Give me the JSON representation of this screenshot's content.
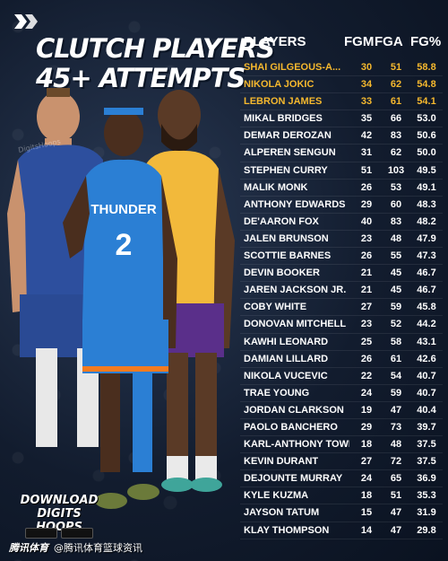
{
  "header": {
    "title_line1": "CLUTCH PLAYERS",
    "title_line2": "45+ ATTEMPTS"
  },
  "columns": {
    "player": "PLAYERS",
    "fgm": "FGM",
    "fga": "FGA",
    "fgp": "FG%"
  },
  "highlight_color": "#f5b82e",
  "rows": [
    {
      "name": "SHAI GILGEOUS-A...",
      "fgm": "30",
      "fga": "51",
      "fgp": "58.8",
      "highlight": true
    },
    {
      "name": "NIKOLA JOKIC",
      "fgm": "34",
      "fga": "62",
      "fgp": "54.8",
      "highlight": true
    },
    {
      "name": "LEBRON JAMES",
      "fgm": "33",
      "fga": "61",
      "fgp": "54.1",
      "highlight": true
    },
    {
      "name": "MIKAL BRIDGES",
      "fgm": "35",
      "fga": "66",
      "fgp": "53.0",
      "highlight": false
    },
    {
      "name": "DEMAR DEROZAN",
      "fgm": "42",
      "fga": "83",
      "fgp": "50.6",
      "highlight": false
    },
    {
      "name": "ALPEREN SENGUN",
      "fgm": "31",
      "fga": "62",
      "fgp": "50.0",
      "highlight": false
    },
    {
      "name": "STEPHEN CURRY",
      "fgm": "51",
      "fga": "103",
      "fgp": "49.5",
      "highlight": false
    },
    {
      "name": "MALIK MONK",
      "fgm": "26",
      "fga": "53",
      "fgp": "49.1",
      "highlight": false
    },
    {
      "name": "ANTHONY EDWARDS",
      "fgm": "29",
      "fga": "60",
      "fgp": "48.3",
      "highlight": false
    },
    {
      "name": "DE'AARON FOX",
      "fgm": "40",
      "fga": "83",
      "fgp": "48.2",
      "highlight": false
    },
    {
      "name": "JALEN BRUNSON",
      "fgm": "23",
      "fga": "48",
      "fgp": "47.9",
      "highlight": false
    },
    {
      "name": "SCOTTIE BARNES",
      "fgm": "26",
      "fga": "55",
      "fgp": "47.3",
      "highlight": false
    },
    {
      "name": "DEVIN BOOKER",
      "fgm": "21",
      "fga": "45",
      "fgp": "46.7",
      "highlight": false
    },
    {
      "name": "JAREN JACKSON JR.",
      "fgm": "21",
      "fga": "45",
      "fgp": "46.7",
      "highlight": false
    },
    {
      "name": "COBY WHITE",
      "fgm": "27",
      "fga": "59",
      "fgp": "45.8",
      "highlight": false
    },
    {
      "name": "DONOVAN MITCHELL",
      "fgm": "23",
      "fga": "52",
      "fgp": "44.2",
      "highlight": false
    },
    {
      "name": "KAWHI LEONARD",
      "fgm": "25",
      "fga": "58",
      "fgp": "43.1",
      "highlight": false
    },
    {
      "name": "DAMIAN LILLARD",
      "fgm": "26",
      "fga": "61",
      "fgp": "42.6",
      "highlight": false
    },
    {
      "name": "NIKOLA VUCEVIC",
      "fgm": "22",
      "fga": "54",
      "fgp": "40.7",
      "highlight": false
    },
    {
      "name": "TRAE YOUNG",
      "fgm": "24",
      "fga": "59",
      "fgp": "40.7",
      "highlight": false
    },
    {
      "name": "JORDAN CLARKSON",
      "fgm": "19",
      "fga": "47",
      "fgp": "40.4",
      "highlight": false
    },
    {
      "name": "PAOLO BANCHERO",
      "fgm": "29",
      "fga": "73",
      "fgp": "39.7",
      "highlight": false
    },
    {
      "name": "KARL-ANTHONY TOWNS",
      "fgm": "18",
      "fga": "48",
      "fgp": "37.5",
      "highlight": false
    },
    {
      "name": "KEVIN DURANT",
      "fgm": "27",
      "fga": "72",
      "fgp": "37.5",
      "highlight": false
    },
    {
      "name": "DEJOUNTE MURRAY",
      "fgm": "24",
      "fga": "65",
      "fgp": "36.9",
      "highlight": false
    },
    {
      "name": "KYLE KUZMA",
      "fgm": "18",
      "fga": "51",
      "fgp": "35.3",
      "highlight": false
    },
    {
      "name": "JAYSON TATUM",
      "fgm": "15",
      "fga": "47",
      "fgp": "31.9",
      "highlight": false
    },
    {
      "name": "KLAY THOMPSON",
      "fgm": "14",
      "fga": "47",
      "fgp": "29.8",
      "highlight": false
    }
  ],
  "jersey": {
    "team_text": "THUNDER",
    "number": "2"
  },
  "image_watermark": "DigitsHoops",
  "promo": {
    "line1": "DOWNLOAD",
    "line2": "DIGITS HOOPS"
  },
  "footer": {
    "brand": "腾讯体育",
    "handle": "@腾讯体育篮球资讯"
  },
  "icons": [
    "digits-hoops-logo-icon",
    "app-store-icon",
    "google-play-icon"
  ]
}
